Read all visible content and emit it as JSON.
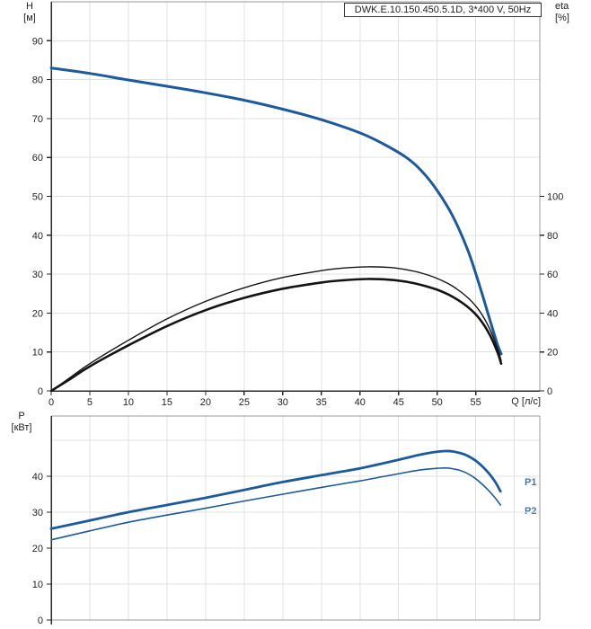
{
  "title_box": {
    "label": "DWK.E.10.150.450.5.1D, 3*400 V, 50Hz"
  },
  "colors": {
    "curve_blue": "#1d5a9b",
    "curve_black": "#141414",
    "power_label_blue": "#4577b3",
    "grid": "#e0e0e0",
    "frame_gray": "#999999",
    "axis_dark": "#2a2a2a",
    "text": "#222222"
  },
  "chart_data": [
    {
      "name": "hq-eta-chart",
      "type": "line",
      "title": "DWK.E.10.150.450.5.1D, 3*400 V, 50Hz",
      "xlabel": "Q [л/с]",
      "ylabel_left_lines": [
        "H",
        "[м]"
      ],
      "ylabel_right_lines": [
        "eta",
        "[%]"
      ],
      "grid": true,
      "legend_position": "none",
      "xlim": [
        0,
        63.3
      ],
      "x_ticks": [
        0,
        5,
        10,
        15,
        20,
        25,
        30,
        35,
        40,
        45,
        50,
        55
      ],
      "x_grid_step": 5,
      "ylim_left": [
        0,
        100
      ],
      "y_ticks_left": [
        0,
        10,
        20,
        30,
        40,
        50,
        60,
        70,
        80,
        90
      ],
      "ylim_right": [
        0,
        200
      ],
      "y_ticks_right": [
        0,
        20,
        40,
        60,
        80,
        100
      ],
      "series": [
        {
          "name": "head-curve",
          "label": "H",
          "axis": "left",
          "color_key": "curve_blue",
          "width": 3,
          "points": [
            [
              0,
              83
            ],
            [
              5,
              81.6
            ],
            [
              10,
              79.9
            ],
            [
              15,
              78.3
            ],
            [
              20,
              76.6
            ],
            [
              25,
              74.7
            ],
            [
              30,
              72.4
            ],
            [
              35,
              69.7
            ],
            [
              40,
              66.3
            ],
            [
              43,
              63.5
            ],
            [
              46,
              60
            ],
            [
              48,
              56.5
            ],
            [
              50,
              51.5
            ],
            [
              52,
              45
            ],
            [
              54,
              36
            ],
            [
              55.5,
              27
            ],
            [
              56.8,
              18.5
            ],
            [
              57.8,
              12
            ],
            [
              58.3,
              9.5
            ]
          ]
        },
        {
          "name": "efficiency-pump-curve",
          "label": "eta pump",
          "axis": "right",
          "color_key": "curve_black",
          "width": 1.4,
          "points": [
            [
              0,
              0
            ],
            [
              2.5,
              7
            ],
            [
              5,
              14
            ],
            [
              10,
              26
            ],
            [
              15,
              37
            ],
            [
              20,
              46
            ],
            [
              25,
              53
            ],
            [
              30,
              58.3
            ],
            [
              35,
              61.8
            ],
            [
              38,
              63.2
            ],
            [
              41,
              63.8
            ],
            [
              44,
              63.4
            ],
            [
              46,
              62.3
            ],
            [
              48,
              60.5
            ],
            [
              50,
              57.8
            ],
            [
              52,
              53.8
            ],
            [
              54,
              47.8
            ],
            [
              55.5,
              41
            ],
            [
              56.8,
              32
            ],
            [
              57.8,
              22
            ],
            [
              58.3,
              15.5
            ]
          ]
        },
        {
          "name": "efficiency-pump-motor-curve",
          "label": "eta pump+motor",
          "axis": "right",
          "color_key": "curve_black",
          "width": 2.6,
          "points": [
            [
              0,
              0
            ],
            [
              2.5,
              6.2
            ],
            [
              5,
              12.6
            ],
            [
              10,
              23.4
            ],
            [
              15,
              33.3
            ],
            [
              20,
              41.5
            ],
            [
              25,
              47.8
            ],
            [
              30,
              52.5
            ],
            [
              35,
              55.7
            ],
            [
              38,
              56.9
            ],
            [
              41,
              57.5
            ],
            [
              44,
              57.1
            ],
            [
              46,
              56.1
            ],
            [
              48,
              54.4
            ],
            [
              50,
              52
            ],
            [
              52,
              48.4
            ],
            [
              54,
              43
            ],
            [
              55.5,
              37
            ],
            [
              56.8,
              29
            ],
            [
              57.8,
              20
            ],
            [
              58.3,
              14
            ]
          ]
        }
      ]
    },
    {
      "name": "power-chart",
      "type": "line",
      "ylabel_left_lines": [
        "P",
        "[кВт]"
      ],
      "grid": true,
      "xlim": [
        0,
        63.3
      ],
      "x_grid_step": 5,
      "ylim": [
        0,
        56.75
      ],
      "y_ticks": [
        0,
        10,
        20,
        30,
        40
      ],
      "y_grid": [
        10,
        20,
        30,
        40,
        50
      ],
      "series": [
        {
          "name": "power-input-curve",
          "label": "P1",
          "color_key": "curve_blue",
          "width": 2.8,
          "points": [
            [
              0,
              25.4
            ],
            [
              5,
              27.7
            ],
            [
              10,
              30
            ],
            [
              15,
              32
            ],
            [
              20,
              34
            ],
            [
              25,
              36.2
            ],
            [
              30,
              38.4
            ],
            [
              35,
              40.3
            ],
            [
              40,
              42.2
            ],
            [
              43,
              43.6
            ],
            [
              46,
              45.1
            ],
            [
              48,
              46.1
            ],
            [
              50,
              46.8
            ],
            [
              51,
              47
            ],
            [
              52,
              46.9
            ],
            [
              53.5,
              46.1
            ],
            [
              55,
              44.3
            ],
            [
              56.5,
              41.3
            ],
            [
              57.5,
              38.5
            ],
            [
              58.2,
              35.8
            ]
          ]
        },
        {
          "name": "power-shaft-curve",
          "label": "P2",
          "color_key": "curve_blue",
          "width": 1.6,
          "points": [
            [
              0,
              22.3
            ],
            [
              5,
              24.8
            ],
            [
              10,
              27.2
            ],
            [
              15,
              29.2
            ],
            [
              20,
              31.1
            ],
            [
              25,
              33.1
            ],
            [
              30,
              35
            ],
            [
              35,
              36.9
            ],
            [
              40,
              38.7
            ],
            [
              43,
              39.9
            ],
            [
              46,
              41.1
            ],
            [
              48,
              41.8
            ],
            [
              50,
              42.2
            ],
            [
              51,
              42.3
            ],
            [
              52,
              42.1
            ],
            [
              53.5,
              41.2
            ],
            [
              55,
              39.3
            ],
            [
              56.5,
              36.4
            ],
            [
              57.5,
              34
            ],
            [
              58.2,
              32
            ]
          ]
        }
      ],
      "curve_labels": {
        "p1": "P1",
        "p2": "P2"
      }
    }
  ]
}
